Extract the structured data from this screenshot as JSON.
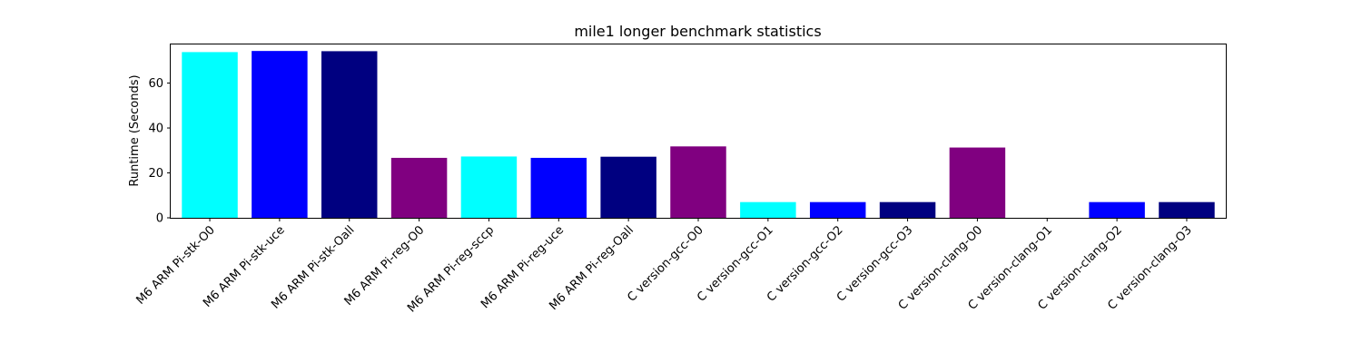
{
  "chart_data": {
    "type": "bar",
    "title": "mile1 longer benchmark statistics",
    "xlabel": "",
    "ylabel": "Runtime (Seconds)",
    "categories": [
      "M6 ARM Pi-stk-O0",
      "M6 ARM Pi-stk-uce",
      "M6 ARM Pi-stk-Oall",
      "M6 ARM Pi-reg-O0",
      "M6 ARM Pi-reg-sccp",
      "M6 ARM Pi-reg-uce",
      "M6 ARM Pi-reg-Oall",
      "C version-gcc-O0",
      "C version-gcc-O1",
      "C version-gcc-O2",
      "C version-gcc-O3",
      "C version-clang-O0",
      "C version-clang-O1",
      "C version-clang-O2",
      "C version-clang-O3"
    ],
    "values": [
      73.8,
      74.3,
      74.2,
      26.7,
      27.3,
      26.7,
      27.2,
      31.8,
      7.0,
      7.0,
      7.0,
      31.3,
      0.0,
      7.0,
      7.0
    ],
    "colors": [
      "#00ffff",
      "#0000ff",
      "#000080",
      "#800080",
      "#00ffff",
      "#0000ff",
      "#000080",
      "#800080",
      "#00ffff",
      "#0000ff",
      "#000080",
      "#800080",
      "#00ffff",
      "#0000ff",
      "#000080"
    ],
    "yticks": [
      0,
      20,
      40,
      60
    ],
    "ylim": [
      0,
      77.6
    ],
    "grid": false
  }
}
